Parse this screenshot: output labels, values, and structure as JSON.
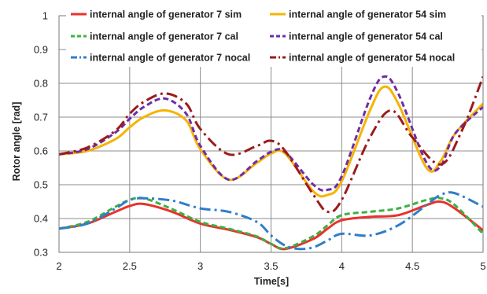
{
  "chart_data": {
    "type": "line",
    "title": "",
    "xlabel": "Time[s]",
    "ylabel": "Rotor angle [rad]",
    "xlim": [
      2,
      5
    ],
    "ylim": [
      0.3,
      1.0
    ],
    "xticks": [
      2,
      2.5,
      3,
      3.5,
      4,
      4.5,
      5
    ],
    "xtick_labels": [
      "2",
      "2.5",
      "3",
      "3.5",
      "4",
      "4.5",
      "5"
    ],
    "yticks": [
      0.3,
      0.4,
      0.5,
      0.6,
      0.7,
      0.8,
      0.9,
      1.0
    ],
    "ytick_labels": [
      "0.3",
      "0.4",
      "0.5",
      "0.6",
      "0.7",
      "0.8",
      "0.9",
      "1"
    ],
    "grid": true,
    "legend_position": "top, inside plot area, two columns",
    "series": [
      {
        "name": "internal angle of generator 7 sim",
        "color": "#e8322b",
        "dash": "solid",
        "x": [
          2.0,
          2.2,
          2.4,
          2.5,
          2.6,
          2.8,
          3.0,
          3.2,
          3.4,
          3.5,
          3.6,
          3.8,
          3.9,
          4.0,
          4.2,
          4.4,
          4.6,
          4.7,
          4.8,
          5.0
        ],
        "y": [
          0.37,
          0.385,
          0.42,
          0.437,
          0.443,
          0.42,
          0.385,
          0.367,
          0.345,
          0.325,
          0.31,
          0.34,
          0.37,
          0.395,
          0.405,
          0.41,
          0.44,
          0.45,
          0.43,
          0.365
        ]
      },
      {
        "name": "internal angle of generator 7 cal",
        "color": "#3cb043",
        "dash": "dashed",
        "x": [
          2.0,
          2.2,
          2.4,
          2.5,
          2.6,
          2.8,
          3.0,
          3.2,
          3.4,
          3.5,
          3.6,
          3.8,
          3.9,
          4.0,
          4.2,
          4.4,
          4.6,
          4.7,
          4.8,
          5.0
        ],
        "y": [
          0.37,
          0.39,
          0.435,
          0.455,
          0.46,
          0.428,
          0.39,
          0.37,
          0.347,
          0.325,
          0.312,
          0.348,
          0.38,
          0.41,
          0.42,
          0.43,
          0.455,
          0.46,
          0.44,
          0.355
        ]
      },
      {
        "name": "internal angle of generator 7 nocal",
        "color": "#2f7ec9",
        "dash": "dashdot",
        "x": [
          2.0,
          2.2,
          2.4,
          2.5,
          2.6,
          2.8,
          3.0,
          3.2,
          3.4,
          3.5,
          3.6,
          3.7,
          3.8,
          3.9,
          4.0,
          4.2,
          4.4,
          4.6,
          4.7,
          4.8,
          5.0
        ],
        "y": [
          0.37,
          0.385,
          0.43,
          0.455,
          0.46,
          0.453,
          0.43,
          0.42,
          0.39,
          0.35,
          0.32,
          0.31,
          0.315,
          0.335,
          0.355,
          0.35,
          0.38,
          0.44,
          0.47,
          0.475,
          0.435
        ]
      },
      {
        "name": "internal angle of generator 54 sim",
        "color": "#f5b400",
        "dash": "solid",
        "x": [
          2.0,
          2.2,
          2.4,
          2.5,
          2.6,
          2.75,
          2.9,
          3.0,
          3.2,
          3.4,
          3.5,
          3.6,
          3.8,
          3.9,
          4.0,
          4.2,
          4.3,
          4.4,
          4.6,
          4.7,
          4.8,
          5.0
        ],
        "y": [
          0.59,
          0.6,
          0.635,
          0.67,
          0.7,
          0.72,
          0.69,
          0.605,
          0.515,
          0.565,
          0.592,
          0.592,
          0.48,
          0.47,
          0.51,
          0.72,
          0.79,
          0.74,
          0.55,
          0.57,
          0.65,
          0.74
        ]
      },
      {
        "name": "internal angle of generator 54 cal",
        "color": "#6f2da8",
        "dash": "dashed",
        "x": [
          2.0,
          2.2,
          2.4,
          2.5,
          2.6,
          2.75,
          2.9,
          3.0,
          3.2,
          3.4,
          3.5,
          3.6,
          3.8,
          3.9,
          4.0,
          4.2,
          4.3,
          4.4,
          4.6,
          4.7,
          4.8,
          5.0
        ],
        "y": [
          0.59,
          0.605,
          0.655,
          0.695,
          0.73,
          0.755,
          0.71,
          0.615,
          0.515,
          0.57,
          0.597,
          0.597,
          0.5,
          0.485,
          0.525,
          0.755,
          0.82,
          0.77,
          0.565,
          0.555,
          0.65,
          0.73
        ]
      },
      {
        "name": "internal angle of generator 54 nocal",
        "color": "#9b1b1b",
        "dash": "dashdot",
        "x": [
          2.0,
          2.2,
          2.4,
          2.5,
          2.6,
          2.75,
          2.9,
          3.0,
          3.2,
          3.4,
          3.5,
          3.6,
          3.8,
          3.9,
          4.0,
          4.2,
          4.35,
          4.5,
          4.7,
          4.85,
          5.0
        ],
        "y": [
          0.59,
          0.61,
          0.66,
          0.71,
          0.745,
          0.77,
          0.74,
          0.665,
          0.59,
          0.615,
          0.63,
          0.6,
          0.47,
          0.42,
          0.455,
          0.64,
          0.72,
          0.64,
          0.56,
          0.66,
          0.82
        ]
      }
    ]
  }
}
